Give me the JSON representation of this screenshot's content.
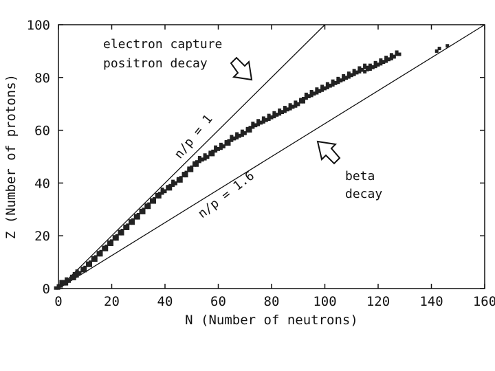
{
  "chart_data": {
    "type": "scatter",
    "xlabel": "N (Number of neutrons)",
    "ylabel": "Z (Number of protons)",
    "xlim": [
      0,
      160
    ],
    "ylim": [
      0,
      100
    ],
    "xticks": [
      "0",
      "20",
      "40",
      "60",
      "80",
      "100",
      "120",
      "140",
      "160"
    ],
    "yticks": [
      "0",
      "20",
      "40",
      "60",
      "80",
      "100"
    ],
    "grid": false,
    "annotations": {
      "ec_line1": "electron capture",
      "ec_line2": "positron decay",
      "beta_line1": "beta",
      "beta_line2": "decay",
      "np1_label": "n/p = 1",
      "np16_label": "n/p = 1.6"
    },
    "reference_lines": [
      {
        "label": "n/p = 1",
        "points": [
          [
            0,
            0
          ],
          [
            100,
            100
          ]
        ]
      },
      {
        "label": "n/p = 1.6",
        "points": [
          [
            0,
            0
          ],
          [
            160,
            100
          ]
        ]
      }
    ],
    "stable_band": [
      [
        0,
        1
      ],
      [
        1,
        1
      ],
      [
        2,
        2
      ],
      [
        4,
        3
      ],
      [
        5,
        4
      ],
      [
        6,
        5
      ],
      [
        8,
        6
      ],
      [
        10,
        8
      ],
      [
        12,
        10
      ],
      [
        14,
        12
      ],
      [
        16,
        14
      ],
      [
        18,
        16
      ],
      [
        20,
        18
      ],
      [
        22,
        20
      ],
      [
        24,
        22
      ],
      [
        26,
        24
      ],
      [
        28,
        26
      ],
      [
        30,
        28
      ],
      [
        32,
        30
      ],
      [
        34,
        32
      ],
      [
        36,
        34
      ],
      [
        38,
        36
      ],
      [
        40,
        37
      ],
      [
        42,
        39
      ],
      [
        44,
        40
      ],
      [
        46,
        42
      ],
      [
        48,
        44
      ],
      [
        50,
        46
      ],
      [
        52,
        48
      ],
      [
        54,
        49
      ],
      [
        56,
        50
      ],
      [
        58,
        52
      ],
      [
        60,
        53
      ],
      [
        62,
        54
      ],
      [
        64,
        56
      ],
      [
        66,
        57
      ],
      [
        68,
        58
      ],
      [
        70,
        59
      ],
      [
        72,
        61
      ],
      [
        74,
        62
      ],
      [
        76,
        63
      ],
      [
        78,
        64
      ],
      [
        80,
        65
      ],
      [
        82,
        66
      ],
      [
        84,
        67
      ],
      [
        86,
        68
      ],
      [
        88,
        69
      ],
      [
        90,
        70
      ],
      [
        92,
        72
      ],
      [
        94,
        73
      ],
      [
        96,
        74
      ],
      [
        98,
        75
      ],
      [
        100,
        76
      ],
      [
        102,
        77
      ],
      [
        104,
        78
      ],
      [
        106,
        79
      ],
      [
        108,
        80
      ],
      [
        110,
        81
      ],
      [
        112,
        82
      ],
      [
        114,
        83
      ],
      [
        116,
        83
      ],
      [
        118,
        84
      ],
      [
        120,
        85
      ],
      [
        122,
        86
      ],
      [
        124,
        87
      ],
      [
        126,
        88
      ]
    ],
    "heavy_points": [
      [
        142,
        90
      ],
      [
        143,
        91
      ],
      [
        146,
        92
      ]
    ]
  }
}
